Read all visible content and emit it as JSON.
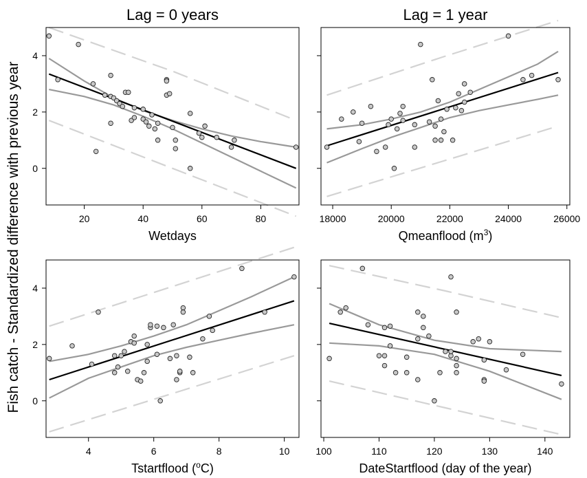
{
  "figure": {
    "ylabel": "Fish catch - Standardized difference with previous year",
    "col_titles": [
      "Lag = 0 years",
      "Lag = 1 year"
    ]
  },
  "chart_data": [
    {
      "type": "scatter",
      "title": "Lag = 0 years",
      "xlabel": "Wetdays",
      "xlabel_sup": "",
      "xlabel_tail": "",
      "xlim": [
        7,
        93
      ],
      "ylim": [
        -1.3,
        5.0
      ],
      "xticks": [
        20,
        40,
        60,
        80
      ],
      "yticks": [
        0,
        2,
        4
      ],
      "show_ytick_labels": true,
      "colors": {
        "points_fill": "#c8c8c8",
        "fit": "#000000",
        "ci": "#999999",
        "pi": "#d3d3d3"
      },
      "points": [
        [
          8,
          4.7
        ],
        [
          11,
          3.15
        ],
        [
          18,
          4.4
        ],
        [
          23,
          3.0
        ],
        [
          24,
          0.6
        ],
        [
          27,
          2.6
        ],
        [
          29,
          2.55
        ],
        [
          29,
          1.6
        ],
        [
          29,
          3.3
        ],
        [
          30,
          2.5
        ],
        [
          31,
          2.4
        ],
        [
          32,
          2.3
        ],
        [
          33,
          2.2
        ],
        [
          34,
          2.7
        ],
        [
          35,
          2.7
        ],
        [
          36,
          1.7
        ],
        [
          37,
          1.8
        ],
        [
          37,
          2.15
        ],
        [
          40,
          2.1
        ],
        [
          40,
          1.75
        ],
        [
          41,
          1.65
        ],
        [
          42,
          1.5
        ],
        [
          43,
          1.9
        ],
        [
          44,
          1.4
        ],
        [
          45,
          1.6
        ],
        [
          45,
          1.0
        ],
        [
          48,
          3.15
        ],
        [
          48,
          3.1
        ],
        [
          48,
          2.6
        ],
        [
          49,
          2.65
        ],
        [
          50,
          1.45
        ],
        [
          51,
          1.0
        ],
        [
          51,
          0.7
        ],
        [
          56,
          1.95
        ],
        [
          56,
          0.0
        ],
        [
          59,
          1.25
        ],
        [
          60,
          1.1
        ],
        [
          61,
          1.5
        ],
        [
          65,
          1.1
        ],
        [
          70,
          0.75
        ],
        [
          71,
          1.0
        ],
        [
          92,
          0.75
        ]
      ],
      "fit": [
        [
          8,
          3.35
        ],
        [
          92,
          0.0
        ]
      ],
      "ci_upper": [
        [
          8,
          3.9
        ],
        [
          20,
          3.1
        ],
        [
          30,
          2.5
        ],
        [
          40,
          2.05
        ],
        [
          50,
          1.7
        ],
        [
          60,
          1.4
        ],
        [
          70,
          1.15
        ],
        [
          80,
          0.95
        ],
        [
          92,
          0.75
        ]
      ],
      "ci_lower": [
        [
          8,
          2.8
        ],
        [
          20,
          2.55
        ],
        [
          30,
          2.25
        ],
        [
          40,
          1.85
        ],
        [
          50,
          1.4
        ],
        [
          60,
          0.9
        ],
        [
          70,
          0.4
        ],
        [
          80,
          -0.1
        ],
        [
          92,
          -0.7
        ]
      ],
      "pi_upper": [
        [
          8,
          5.0
        ],
        [
          50,
          3.45
        ],
        [
          92,
          1.7
        ]
      ],
      "pi_lower": [
        [
          8,
          1.7
        ],
        [
          50,
          0.0
        ],
        [
          92,
          -1.7
        ]
      ]
    },
    {
      "type": "scatter",
      "title": "Lag = 1 year",
      "xlabel": "Qmeanflood (m",
      "xlabel_sup": "3",
      "xlabel_tail": ")",
      "xlim": [
        17600,
        26100
      ],
      "ylim": [
        -1.3,
        5.0
      ],
      "xticks": [
        18000,
        20000,
        22000,
        24000,
        26000
      ],
      "yticks": [
        0,
        2,
        4
      ],
      "show_ytick_labels": false,
      "colors": {
        "points_fill": "#c8c8c8",
        "fit": "#000000",
        "ci": "#999999",
        "pi": "#d3d3d3"
      },
      "points": [
        [
          17800,
          0.75
        ],
        [
          18300,
          1.75
        ],
        [
          18700,
          2.0
        ],
        [
          18900,
          0.95
        ],
        [
          19000,
          1.6
        ],
        [
          19300,
          2.2
        ],
        [
          19500,
          0.6
        ],
        [
          19800,
          0.75
        ],
        [
          19900,
          1.55
        ],
        [
          20000,
          1.75
        ],
        [
          20100,
          0.0
        ],
        [
          20200,
          1.4
        ],
        [
          20300,
          1.95
        ],
        [
          20400,
          1.7
        ],
        [
          20400,
          2.2
        ],
        [
          20800,
          1.55
        ],
        [
          20800,
          0.75
        ],
        [
          21000,
          4.4
        ],
        [
          21300,
          1.65
        ],
        [
          21400,
          3.15
        ],
        [
          21500,
          1.0
        ],
        [
          21500,
          1.5
        ],
        [
          21600,
          2.4
        ],
        [
          21700,
          1.0
        ],
        [
          21700,
          1.75
        ],
        [
          21800,
          1.3
        ],
        [
          21900,
          2.1
        ],
        [
          22100,
          1.0
        ],
        [
          22200,
          2.15
        ],
        [
          22300,
          2.65
        ],
        [
          22400,
          2.05
        ],
        [
          22500,
          2.35
        ],
        [
          22500,
          3.0
        ],
        [
          22700,
          2.7
        ],
        [
          24000,
          4.7
        ],
        [
          24500,
          3.15
        ],
        [
          24800,
          3.3
        ],
        [
          25700,
          3.15
        ]
      ],
      "fit": [
        [
          17800,
          0.8
        ],
        [
          25700,
          3.4
        ]
      ],
      "ci_upper": [
        [
          17800,
          1.4
        ],
        [
          19000,
          1.55
        ],
        [
          20000,
          1.75
        ],
        [
          21000,
          2.0
        ],
        [
          22000,
          2.35
        ],
        [
          23000,
          2.8
        ],
        [
          24000,
          3.25
        ],
        [
          25000,
          3.7
        ],
        [
          25700,
          4.15
        ]
      ],
      "ci_lower": [
        [
          17800,
          0.2
        ],
        [
          19000,
          0.7
        ],
        [
          20000,
          1.1
        ],
        [
          21000,
          1.45
        ],
        [
          22000,
          1.8
        ],
        [
          23000,
          2.05
        ],
        [
          24000,
          2.25
        ],
        [
          25000,
          2.45
        ],
        [
          25700,
          2.6
        ]
      ],
      "pi_upper": [
        [
          17800,
          2.6
        ],
        [
          21750,
          3.95
        ],
        [
          25700,
          5.25
        ]
      ],
      "pi_lower": [
        [
          17800,
          -1.0
        ],
        [
          21750,
          0.25
        ],
        [
          25700,
          1.5
        ]
      ]
    },
    {
      "type": "scatter",
      "title": "",
      "xlabel": "Tstartflood (",
      "xlabel_sup": "o",
      "xlabel_tail": "C)",
      "xlim": [
        2.7,
        10.45
      ],
      "ylim": [
        -1.3,
        5.0
      ],
      "xticks": [
        4,
        6,
        8,
        10
      ],
      "yticks": [
        0,
        2,
        4
      ],
      "show_ytick_labels": true,
      "colors": {
        "points_fill": "#c8c8c8",
        "fit": "#000000",
        "ci": "#999999",
        "pi": "#d3d3d3"
      },
      "points": [
        [
          2.8,
          1.5
        ],
        [
          3.5,
          1.95
        ],
        [
          4.1,
          1.3
        ],
        [
          4.3,
          3.15
        ],
        [
          4.8,
          1.0
        ],
        [
          4.8,
          1.6
        ],
        [
          4.9,
          1.2
        ],
        [
          5.0,
          1.6
        ],
        [
          5.1,
          1.75
        ],
        [
          5.2,
          1.05
        ],
        [
          5.3,
          2.1
        ],
        [
          5.4,
          2.05
        ],
        [
          5.4,
          2.3
        ],
        [
          5.5,
          0.75
        ],
        [
          5.6,
          0.7
        ],
        [
          5.7,
          1.0
        ],
        [
          5.8,
          1.4
        ],
        [
          5.8,
          2.0
        ],
        [
          5.9,
          2.6
        ],
        [
          5.9,
          2.7
        ],
        [
          6.1,
          1.65
        ],
        [
          6.1,
          2.65
        ],
        [
          6.2,
          0.0
        ],
        [
          6.3,
          2.6
        ],
        [
          6.5,
          1.5
        ],
        [
          6.6,
          2.7
        ],
        [
          6.7,
          0.75
        ],
        [
          6.7,
          1.6
        ],
        [
          6.8,
          1.0
        ],
        [
          6.8,
          1.05
        ],
        [
          6.9,
          3.3
        ],
        [
          6.9,
          3.15
        ],
        [
          7.1,
          1.55
        ],
        [
          7.2,
          1.0
        ],
        [
          7.5,
          2.2
        ],
        [
          7.7,
          3.0
        ],
        [
          7.8,
          2.5
        ],
        [
          8.7,
          4.7
        ],
        [
          9.4,
          3.15
        ],
        [
          10.3,
          4.4
        ]
      ],
      "fit": [
        [
          2.8,
          0.75
        ],
        [
          10.3,
          3.55
        ]
      ],
      "ci_upper": [
        [
          2.8,
          1.4
        ],
        [
          4.0,
          1.65
        ],
        [
          5.0,
          1.95
        ],
        [
          6.0,
          2.3
        ],
        [
          7.0,
          2.7
        ],
        [
          8.0,
          3.2
        ],
        [
          9.0,
          3.7
        ],
        [
          10.3,
          4.4
        ]
      ],
      "ci_lower": [
        [
          2.8,
          0.1
        ],
        [
          4.0,
          0.8
        ],
        [
          5.0,
          1.2
        ],
        [
          6.0,
          1.6
        ],
        [
          7.0,
          1.9
        ],
        [
          8.0,
          2.15
        ],
        [
          9.0,
          2.4
        ],
        [
          10.3,
          2.7
        ]
      ],
      "pi_upper": [
        [
          2.8,
          2.65
        ],
        [
          6.55,
          4.05
        ],
        [
          10.3,
          5.45
        ]
      ],
      "pi_lower": [
        [
          2.8,
          -1.1
        ],
        [
          6.55,
          0.25
        ],
        [
          10.3,
          1.6
        ]
      ]
    },
    {
      "type": "scatter",
      "title": "",
      "xlabel": "DateStartflood (day of the year)",
      "xlabel_sup": "",
      "xlabel_tail": "",
      "xlim": [
        99.5,
        144.5
      ],
      "ylim": [
        -1.3,
        5.0
      ],
      "xticks": [
        100,
        110,
        120,
        130,
        140
      ],
      "yticks": [
        0,
        2,
        4
      ],
      "show_ytick_labels": false,
      "colors": {
        "points_fill": "#c8c8c8",
        "fit": "#000000",
        "ci": "#999999",
        "pi": "#d3d3d3"
      },
      "points": [
        [
          101,
          1.5
        ],
        [
          103,
          3.15
        ],
        [
          104,
          3.3
        ],
        [
          107,
          4.7
        ],
        [
          108,
          2.7
        ],
        [
          110,
          1.6
        ],
        [
          111,
          2.6
        ],
        [
          111,
          1.25
        ],
        [
          111,
          1.6
        ],
        [
          112,
          2.65
        ],
        [
          112,
          1.95
        ],
        [
          113,
          1.0
        ],
        [
          115,
          1.55
        ],
        [
          115,
          1.0
        ],
        [
          117,
          3.15
        ],
        [
          117,
          2.2
        ],
        [
          117,
          0.75
        ],
        [
          118,
          3.0
        ],
        [
          118,
          2.6
        ],
        [
          119,
          2.3
        ],
        [
          120,
          0.0
        ],
        [
          121,
          1.0
        ],
        [
          122,
          1.75
        ],
        [
          123,
          4.4
        ],
        [
          123,
          1.6
        ],
        [
          123,
          1.75
        ],
        [
          124,
          3.15
        ],
        [
          124,
          1.5
        ],
        [
          124,
          1.25
        ],
        [
          124,
          1.0
        ],
        [
          127,
          2.1
        ],
        [
          128,
          2.2
        ],
        [
          129,
          1.45
        ],
        [
          129,
          0.75
        ],
        [
          129,
          0.7
        ],
        [
          130,
          2.1
        ],
        [
          133,
          1.1
        ],
        [
          136,
          1.65
        ],
        [
          143,
          0.6
        ]
      ],
      "fit": [
        [
          101,
          2.75
        ],
        [
          143,
          0.9
        ]
      ],
      "ci_upper": [
        [
          101,
          3.45
        ],
        [
          110,
          2.7
        ],
        [
          120,
          2.15
        ],
        [
          130,
          1.85
        ],
        [
          143,
          1.75
        ]
      ],
      "ci_lower": [
        [
          101,
          2.05
        ],
        [
          110,
          1.95
        ],
        [
          120,
          1.65
        ],
        [
          130,
          1.05
        ],
        [
          143,
          0.05
        ]
      ],
      "pi_upper": [
        [
          101,
          4.8
        ],
        [
          122,
          3.9
        ],
        [
          143,
          2.95
        ]
      ],
      "pi_lower": [
        [
          101,
          0.7
        ],
        [
          122,
          -0.25
        ],
        [
          143,
          -1.2
        ]
      ]
    }
  ]
}
